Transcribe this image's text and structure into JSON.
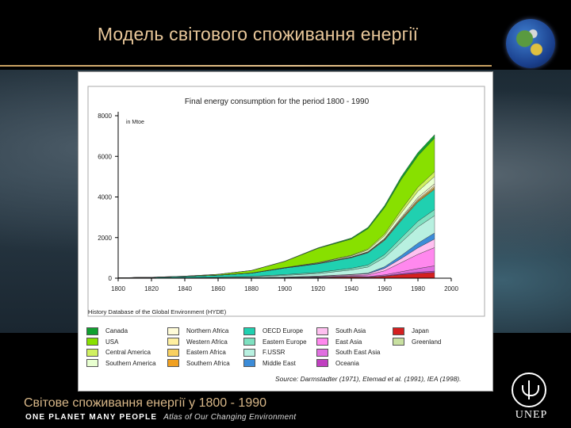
{
  "slide": {
    "title": "Модель світового споживання енергії",
    "caption": "Світове споживання енергії у 1800 - 1990",
    "brand": "ONE PLANET MANY PEOPLE",
    "atlas": "Atlas of Our Changing Environment",
    "org": "UNEP",
    "colors": {
      "title": "#e8c79a",
      "rule": "#d9b07a"
    }
  },
  "chart_data": {
    "type": "area",
    "title": "Final energy consumption for the period 1800 - 1990",
    "ylabel": "in Mtoe",
    "xlabel": "",
    "x": [
      1800,
      1820,
      1840,
      1860,
      1880,
      1900,
      1920,
      1940,
      1950,
      1960,
      1970,
      1980,
      1990
    ],
    "x_ticks": [
      1800,
      1820,
      1840,
      1860,
      1880,
      1900,
      1920,
      1940,
      1960,
      1980,
      2000
    ],
    "y_ticks": [
      0,
      2000,
      4000,
      6000,
      8000
    ],
    "xlim": [
      1800,
      2000
    ],
    "ylim": [
      0,
      8000
    ],
    "stacked": true,
    "series": [
      {
        "name": "Japan",
        "color": "#d42020",
        "values": [
          0,
          0,
          0,
          2,
          5,
          15,
          30,
          60,
          40,
          90,
          180,
          240,
          280
        ]
      },
      {
        "name": "Oceania",
        "color": "#c040c0",
        "values": [
          0,
          0,
          0,
          0,
          2,
          5,
          8,
          12,
          15,
          25,
          40,
          55,
          70
        ]
      },
      {
        "name": "South East Asia",
        "color": "#e070e0",
        "values": [
          0,
          0,
          0,
          1,
          2,
          5,
          10,
          20,
          25,
          50,
          100,
          180,
          260
        ]
      },
      {
        "name": "East Asia",
        "color": "#ff88ee",
        "values": [
          0,
          2,
          3,
          5,
          8,
          15,
          25,
          40,
          80,
          200,
          450,
          700,
          900
        ]
      },
      {
        "name": "South Asia",
        "color": "#ffc0f0",
        "values": [
          0,
          2,
          3,
          5,
          8,
          15,
          25,
          40,
          60,
          120,
          200,
          320,
          420
        ]
      },
      {
        "name": "Middle East",
        "color": "#3c8cd8",
        "values": [
          0,
          0,
          0,
          0,
          1,
          3,
          8,
          15,
          30,
          80,
          150,
          230,
          300
        ]
      },
      {
        "name": "F.USSR",
        "color": "#b8f0e0",
        "values": [
          0,
          5,
          10,
          20,
          35,
          80,
          120,
          220,
          300,
          450,
          650,
          800,
          850
        ]
      },
      {
        "name": "Eastern Europe",
        "color": "#7ee0c0",
        "values": [
          0,
          3,
          8,
          15,
          25,
          40,
          60,
          80,
          100,
          150,
          220,
          280,
          300
        ]
      },
      {
        "name": "OECD Europe",
        "color": "#20d0b0",
        "values": [
          20,
          30,
          60,
          100,
          160,
          320,
          420,
          520,
          600,
          700,
          850,
          950,
          1000
        ]
      },
      {
        "name": "Southern Africa",
        "color": "#f0a020",
        "values": [
          0,
          0,
          0,
          0,
          1,
          3,
          8,
          15,
          20,
          30,
          45,
          55,
          60
        ]
      },
      {
        "name": "Eastern Africa",
        "color": "#f8d060",
        "values": [
          0,
          0,
          0,
          0,
          1,
          2,
          4,
          8,
          10,
          15,
          25,
          35,
          45
        ]
      },
      {
        "name": "Western Africa",
        "color": "#fff0a0",
        "values": [
          0,
          0,
          0,
          0,
          1,
          2,
          4,
          8,
          10,
          20,
          35,
          50,
          60
        ]
      },
      {
        "name": "Northern Africa",
        "color": "#fffcd8",
        "values": [
          0,
          0,
          0,
          0,
          1,
          2,
          5,
          10,
          15,
          30,
          50,
          80,
          100
        ]
      },
      {
        "name": "Greenland",
        "color": "#c8e0a0",
        "values": [
          0,
          0,
          0,
          0,
          0,
          0,
          1,
          1,
          1,
          2,
          2,
          3,
          3
        ]
      },
      {
        "name": "Southern America",
        "color": "#e8ffd0",
        "values": [
          0,
          0,
          1,
          2,
          5,
          10,
          25,
          50,
          80,
          130,
          220,
          300,
          360
        ]
      },
      {
        "name": "Central America",
        "color": "#d0f060",
        "values": [
          0,
          0,
          1,
          2,
          4,
          8,
          15,
          30,
          50,
          90,
          150,
          200,
          240
        ]
      },
      {
        "name": "USA",
        "color": "#88e000",
        "values": [
          0,
          5,
          15,
          40,
          120,
          300,
          700,
          800,
          1000,
          1300,
          1500,
          1550,
          1650
        ]
      },
      {
        "name": "Canada",
        "color": "#10a030",
        "values": [
          0,
          0,
          1,
          2,
          5,
          15,
          30,
          50,
          70,
          100,
          140,
          160,
          170
        ]
      }
    ],
    "legend_layout": [
      [
        "Canada",
        "USA",
        "Central America",
        "Southern America"
      ],
      [
        "Northern Africa",
        "Western Africa",
        "Eastern Africa",
        "Southern Africa"
      ],
      [
        "OECD Europe",
        "Eastern Europe",
        "F.USSR",
        "Middle East"
      ],
      [
        "South Asia",
        "East Asia",
        "South East Asia",
        "Oceania"
      ],
      [
        "Japan",
        "Greenland"
      ]
    ],
    "notes": {
      "history": "History Database of the Global Environment (HYDE)",
      "source": "Source: Darmstadter (1971), Etemad et al. (1991), IEA (1998)."
    }
  }
}
